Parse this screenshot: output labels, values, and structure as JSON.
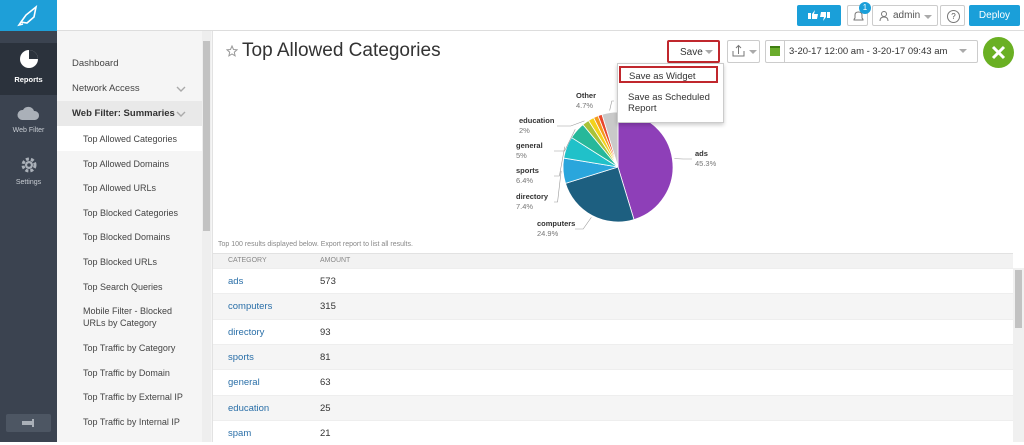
{
  "top_bar": {
    "notification_count": 1,
    "user": "admin",
    "help": "?",
    "deploy": "Deploy"
  },
  "sidebar": [
    "Reports",
    "Web Filter",
    "Settings"
  ],
  "nav": {
    "items": [
      "Dashboard",
      "Network Access"
    ],
    "section": "Web Filter: Summaries",
    "reports": [
      "Top Allowed Categories",
      "Top Allowed Domains",
      "Top Allowed URLs",
      "Top Blocked Categories",
      "Top Blocked Domains",
      "Top Blocked URLs",
      "Top Search Queries",
      "Mobile Filter - Blocked URLs by Category",
      "Top Traffic by Category",
      "Top Traffic by Domain",
      "Top Traffic by External IP",
      "Top Traffic by Internal IP"
    ]
  },
  "page": {
    "title": "Top Allowed Categories",
    "save": "Save",
    "save_menu": [
      "Save as Widget",
      "Save as Scheduled Report"
    ],
    "date_range": "3-20-17 12:00 am - 3-20-17 09:43 am"
  },
  "chart_data": {
    "type": "pie",
    "categories": [
      "ads",
      "computers",
      "directory",
      "sports",
      "general",
      "education",
      null,
      null,
      null,
      "Other"
    ],
    "values": [
      45.3,
      24.9,
      7.4,
      6.4,
      5,
      2,
      1.7,
      1.4,
      1.2,
      4.7
    ],
    "value_labels": [
      "45.3%",
      "24.9%",
      "7.4%",
      "6.4%",
      "5%",
      "2%",
      null,
      null,
      null,
      "4.7%"
    ],
    "colors": [
      "#8e3fb8",
      "#1d5f80",
      "#2aa6dc",
      "#20c1c9",
      "#27b89a",
      "#a8c238",
      "#f2d21b",
      "#f59a1c",
      "#e8462c",
      "#c9c9c9"
    ]
  },
  "note": "Top 100 results displayed below. Export report to list all results.",
  "table": {
    "columns": [
      "CATEGORY",
      "AMOUNT"
    ],
    "rows": [
      [
        "ads",
        573
      ],
      [
        "computers",
        315
      ],
      [
        "directory",
        93
      ],
      [
        "sports",
        81
      ],
      [
        "general",
        63
      ],
      [
        "education",
        25
      ],
      [
        "spam",
        21
      ]
    ]
  }
}
